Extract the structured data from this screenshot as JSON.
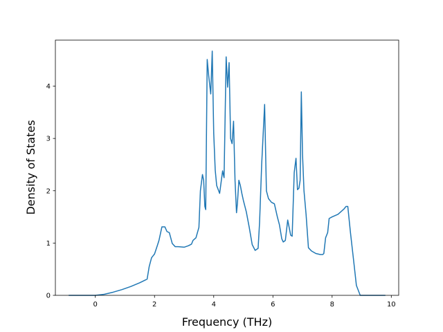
{
  "chart_data": {
    "type": "line",
    "title": "",
    "xlabel": "Frequency (THz)",
    "ylabel": "Density of States",
    "xlim": [
      -1.35,
      10.25
    ],
    "ylim": [
      0,
      4.88
    ],
    "x_ticks": [
      0,
      2,
      4,
      6,
      8,
      10
    ],
    "y_ticks": [
      0,
      1,
      2,
      3,
      4
    ],
    "x_tick_labels": [
      "0",
      "2",
      "4",
      "6",
      "8",
      "10"
    ],
    "y_tick_labels": [
      "0",
      "1",
      "2",
      "3",
      "4"
    ],
    "grid": false,
    "legend": "none",
    "line_color": "#1f77b4",
    "series": [
      {
        "x": [
          -0.9,
          -0.4,
          0.0,
          0.3,
          0.6,
          0.9,
          1.2,
          1.5,
          1.75,
          1.82,
          1.9,
          2.0,
          2.1,
          2.15,
          2.25,
          2.35,
          2.42,
          2.5,
          2.6,
          2.7,
          2.8,
          3.0,
          3.15,
          3.25,
          3.3,
          3.4,
          3.5,
          3.55,
          3.62,
          3.66,
          3.7,
          3.73,
          3.78,
          3.83,
          3.9,
          3.95,
          4.0,
          4.05,
          4.1,
          4.2,
          4.3,
          4.35,
          4.42,
          4.47,
          4.52,
          4.57,
          4.62,
          4.67,
          4.72,
          4.77,
          4.8,
          4.85,
          4.9,
          4.95,
          5.0,
          5.1,
          5.2,
          5.3,
          5.4,
          5.5,
          5.55,
          5.62,
          5.72,
          5.78,
          5.85,
          5.95,
          6.05,
          6.15,
          6.22,
          6.3,
          6.35,
          6.42,
          6.5,
          6.6,
          6.65,
          6.72,
          6.78,
          6.83,
          6.88,
          6.92,
          6.96,
          7.0,
          7.05,
          7.12,
          7.2,
          7.3,
          7.45,
          7.6,
          7.68,
          7.72,
          7.78,
          7.85,
          7.9,
          8.0,
          8.2,
          8.4,
          8.47,
          8.53,
          8.62,
          8.68,
          8.75,
          8.82,
          8.95,
          9.5,
          9.8
        ],
        "y": [
          0,
          0,
          0,
          0.02,
          0.06,
          0.11,
          0.17,
          0.24,
          0.31,
          0.55,
          0.72,
          0.79,
          0.96,
          1.05,
          1.31,
          1.31,
          1.22,
          1.2,
          0.99,
          0.93,
          0.93,
          0.92,
          0.95,
          0.98,
          1.05,
          1.1,
          1.3,
          2.0,
          2.31,
          2.2,
          1.7,
          1.64,
          4.51,
          4.2,
          3.85,
          4.67,
          3.1,
          2.4,
          2.1,
          1.95,
          2.38,
          2.25,
          4.56,
          3.98,
          4.45,
          3.0,
          2.9,
          3.33,
          2.2,
          1.58,
          1.75,
          2.2,
          2.1,
          1.95,
          1.82,
          1.6,
          1.3,
          0.97,
          0.86,
          0.9,
          1.4,
          2.5,
          3.65,
          2.0,
          1.85,
          1.78,
          1.75,
          1.5,
          1.35,
          1.08,
          1.02,
          1.05,
          1.44,
          1.15,
          1.13,
          2.35,
          2.62,
          2.02,
          2.05,
          2.2,
          3.89,
          2.7,
          2.0,
          1.55,
          0.91,
          0.85,
          0.8,
          0.78,
          0.78,
          0.8,
          1.1,
          1.2,
          1.47,
          1.5,
          1.55,
          1.65,
          1.7,
          1.7,
          1.2,
          0.9,
          0.55,
          0.19,
          0.0,
          0.0,
          0.0
        ]
      }
    ]
  }
}
